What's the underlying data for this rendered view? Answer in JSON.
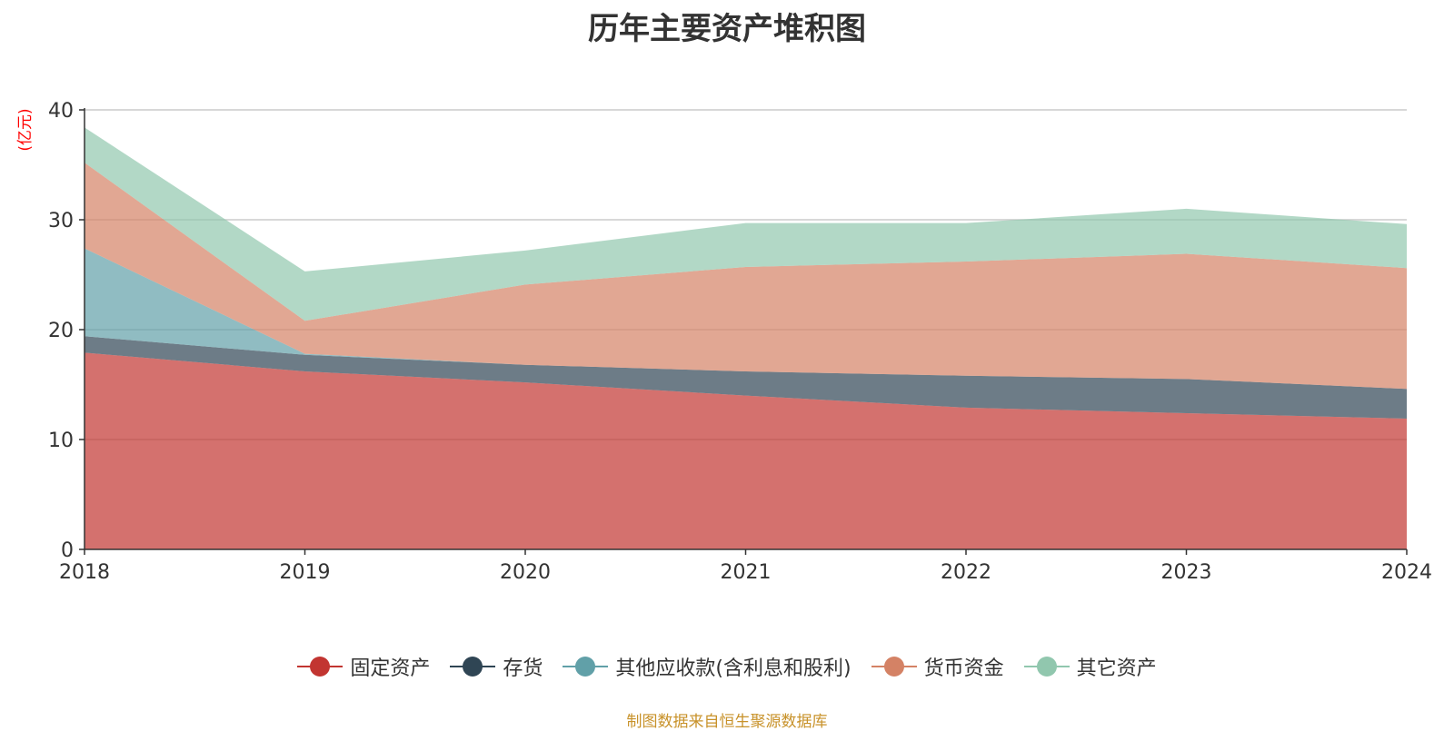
{
  "chart_data": {
    "type": "area",
    "stacked": true,
    "title": "历年主要资产堆积图",
    "ylabel": "(亿元)",
    "xlabel": "",
    "categories": [
      "2018",
      "2019",
      "2020",
      "2021",
      "2022",
      "2023",
      "2024"
    ],
    "ylim": [
      0,
      40
    ],
    "yticks": [
      0,
      10,
      20,
      30,
      40
    ],
    "grid": true,
    "legend_position": "bottom",
    "series": [
      {
        "name": "固定资产",
        "color": "#c23531",
        "values": [
          17.9,
          16.2,
          15.2,
          14.0,
          12.9,
          12.4,
          11.9
        ]
      },
      {
        "name": "存货",
        "color": "#2f4554",
        "values": [
          1.5,
          1.5,
          1.6,
          2.2,
          2.9,
          3.1,
          2.7
        ]
      },
      {
        "name": "其他应收款(含利息和股利)",
        "color": "#61a0a8",
        "values": [
          8.0,
          0.1,
          0.0,
          0.0,
          0.0,
          0.0,
          0.0
        ]
      },
      {
        "name": "货币资金",
        "color": "#d48265",
        "values": [
          7.8,
          3.0,
          7.3,
          9.5,
          10.4,
          11.4,
          11.0
        ]
      },
      {
        "name": "其它资产",
        "color": "#91c7ae",
        "values": [
          3.2,
          4.5,
          3.1,
          4.0,
          3.5,
          4.1,
          4.0
        ]
      }
    ]
  },
  "source_text": "制图数据来自恒生聚源数据库",
  "source_color": "#c8922a",
  "ylabel_color": "#ff0000"
}
